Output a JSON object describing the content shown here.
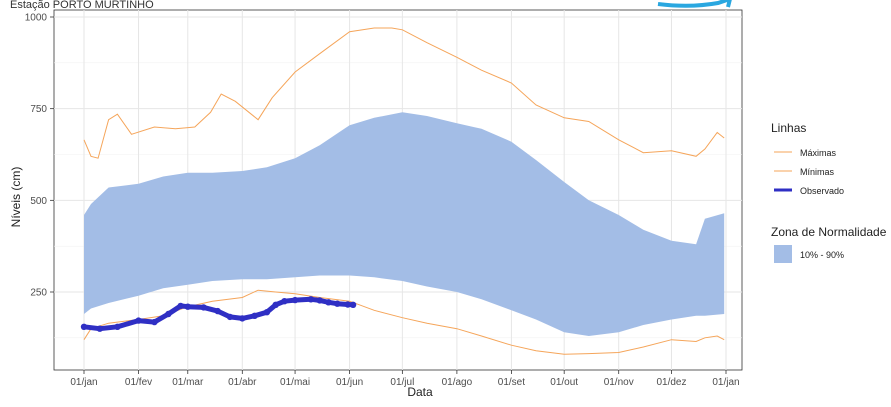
{
  "chart_data": {
    "type": "area",
    "title": "Estação PORTO MURTINHO",
    "xlabel": "Data",
    "ylabel": "Níveis (cm)",
    "x_ticks": [
      "01/jan",
      "01/fev",
      "01/mar",
      "01/abr",
      "01/mai",
      "01/jun",
      "01/jul",
      "01/ago",
      "01/set",
      "01/out",
      "01/nov",
      "01/dez",
      "01/jan"
    ],
    "y_ticks": [
      250,
      500,
      750,
      1000
    ],
    "ylim": [
      50,
      1010
    ],
    "grid": true,
    "legend_position": "right",
    "legend": {
      "lines_title": "Linhas",
      "zone_title": "Zona de Normalidade",
      "maximas_label": "Máximas",
      "minimas_label": "Mínimas",
      "observado_label": "Observado",
      "zone_label": "10% - 90%"
    },
    "colors": {
      "zone": "#a3bde6",
      "maxmin": "#f5a55a",
      "observado": "#2f2fc4",
      "grid": "#e6e6e6",
      "logo": "#2aa7e0"
    },
    "series": [
      {
        "name": "Máximas",
        "x": [
          "01/01",
          "05/01",
          "09/01",
          "15/01",
          "20/01",
          "28/01",
          "10/02",
          "22/02",
          "05/03",
          "14/03",
          "20/03",
          "28/03",
          "10/04",
          "18/04",
          "01/05",
          "15/05",
          "01/06",
          "15/06",
          "25/06",
          "01/07",
          "15/07",
          "01/08",
          "15/08",
          "01/09",
          "15/09",
          "01/10",
          "15/10",
          "01/11",
          "15/11",
          "01/12",
          "15/12",
          "20/12",
          "27/12",
          "31/12"
        ],
        "values": [
          665,
          620,
          615,
          720,
          735,
          680,
          700,
          695,
          700,
          740,
          790,
          770,
          720,
          780,
          850,
          900,
          960,
          970,
          970,
          965,
          930,
          890,
          855,
          820,
          760,
          725,
          715,
          665,
          630,
          635,
          620,
          640,
          685,
          670
        ]
      },
      {
        "name": "Mínimas",
        "x": [
          "01/01",
          "05/01",
          "15/01",
          "01/02",
          "15/02",
          "01/03",
          "15/03",
          "01/04",
          "10/04",
          "20/04",
          "01/05",
          "15/05",
          "01/06",
          "15/06",
          "01/07",
          "15/07",
          "01/08",
          "15/08",
          "01/09",
          "15/09",
          "01/10",
          "15/10",
          "01/11",
          "15/11",
          "01/12",
          "15/12",
          "20/12",
          "27/12",
          "31/12"
        ],
        "values": [
          120,
          150,
          165,
          175,
          185,
          210,
          225,
          235,
          255,
          250,
          245,
          235,
          225,
          200,
          180,
          165,
          150,
          130,
          105,
          90,
          80,
          82,
          85,
          100,
          120,
          115,
          125,
          130,
          120
        ]
      },
      {
        "name": "10% - 90%",
        "x": [
          "01/01",
          "05/01",
          "15/01",
          "01/02",
          "15/02",
          "01/03",
          "15/03",
          "01/04",
          "15/04",
          "01/05",
          "15/05",
          "01/06",
          "15/06",
          "01/07",
          "15/07",
          "01/08",
          "15/08",
          "01/09",
          "15/09",
          "01/10",
          "15/10",
          "01/11",
          "15/11",
          "01/12",
          "15/12",
          "20/12",
          "31/12"
        ],
        "upper": [
          460,
          490,
          535,
          545,
          565,
          575,
          575,
          580,
          590,
          615,
          650,
          705,
          725,
          740,
          730,
          710,
          695,
          660,
          610,
          550,
          500,
          460,
          420,
          390,
          380,
          450,
          465
        ],
        "lower": [
          190,
          205,
          220,
          240,
          260,
          270,
          280,
          285,
          285,
          290,
          295,
          295,
          290,
          280,
          265,
          250,
          230,
          200,
          175,
          140,
          130,
          140,
          160,
          175,
          185,
          185,
          190
        ]
      },
      {
        "name": "Observado",
        "x": [
          "01/01",
          "10/01",
          "20/01",
          "01/02",
          "10/02",
          "18/02",
          "25/02",
          "01/03",
          "10/03",
          "18/03",
          "25/03",
          "01/04",
          "08/04",
          "15/04",
          "20/04",
          "25/04",
          "01/05",
          "10/05",
          "15/05",
          "20/05",
          "25/05",
          "31/05",
          "03/06"
        ],
        "values": [
          155,
          150,
          155,
          172,
          168,
          190,
          212,
          210,
          208,
          198,
          182,
          178,
          185,
          195,
          215,
          225,
          228,
          230,
          227,
          222,
          218,
          216,
          215
        ]
      }
    ]
  }
}
